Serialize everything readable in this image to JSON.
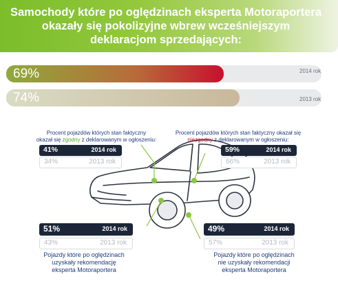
{
  "title": "Samochody które po oględzinach eksperta Motoraportera\nokazały się pokolizyjne wbrew  wcześniejszym\ndeklaracjom sprzedających:",
  "colors": {
    "bar_2014_start": "#8faa3a",
    "bar_2014_end": "#c8102e",
    "bar_2013_start": "#d9dcc4",
    "bar_2013_end": "#c9b89b",
    "accent_green": "#7bbd2b",
    "dark_pill": "#1c2638"
  },
  "chart_data": [
    {
      "type": "bar",
      "title": "Samochody które po oględzinach eksperta Motoraportera okazały się pokolizyjne wbrew  wcześniejszym deklaracjom sprzedających:",
      "categories": [
        "2014 rok",
        "2013 rok"
      ],
      "values": [
        69,
        74
      ],
      "value_labels": [
        "69%",
        "74%"
      ],
      "ylim": [
        0,
        100
      ]
    },
    {
      "type": "table",
      "title": "Procent pojazdów których stan faktyczny okazał się zgodny z deklarowanym w ogłoszeniu:",
      "categories": [
        "2014 rok",
        "2013 rok"
      ],
      "values": [
        41,
        34
      ],
      "value_labels": [
        "41%",
        "34%"
      ]
    },
    {
      "type": "table",
      "title": "Procent pojazdów których stan faktyczny okazał się niezgodny z deklarowanym w ogłoszeniu:",
      "categories": [
        "2014 rok",
        "2013 rok"
      ],
      "values": [
        59,
        66
      ],
      "value_labels": [
        "59%",
        "66%"
      ]
    },
    {
      "type": "table",
      "title": "Pojazdy które po oględzinach uzyskały rekomendację eksperta Motoraportera",
      "categories": [
        "2014 rok",
        "2013 rok"
      ],
      "values": [
        51,
        43
      ],
      "value_labels": [
        "51%",
        "43%"
      ]
    },
    {
      "type": "table",
      "title": "Pojazdy które po oględzinach nie uzyskały rekomendacji eksperta Motoraportera",
      "categories": [
        "2014 rok",
        "2013 rok"
      ],
      "values": [
        49,
        57
      ],
      "value_labels": [
        "49%",
        "57%"
      ]
    }
  ],
  "ui": {
    "desc_left_pre": "Procent pojazdów których stan faktyczny\nokazał się ",
    "desc_left_word": "zgodny",
    "desc_left_post": " z deklarowanym w ogłoszeniu:",
    "desc_right_pre": "Procent pojazdów których stan faktyczny okazał się\n",
    "desc_right_word": "niezgodny",
    "desc_right_post": " z deklarowanym w ogłoszeniu:",
    "bottom_left": "Pojazdy które po oględzinach\nuzyskały rekomendację\neksperta Motoraportera",
    "bottom_right": "Pojazdy które po oględzinach\nnie uzyskały rekomendacji\neksperta Motoraportera"
  }
}
